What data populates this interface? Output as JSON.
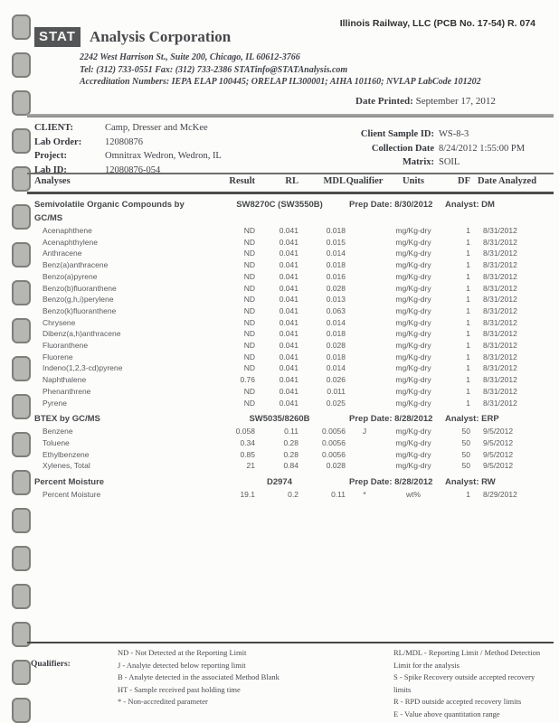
{
  "header": {
    "ref_number": "Illinois Railway, LLC (PCB No. 17-54) R. 074",
    "logo_text": "STAT",
    "company_name": "Analysis Corporation",
    "address_line1": "2242 West Harrison St., Suite 200,  Chicago, IL 60612-3766",
    "address_line2": "Tel: (312) 733-0551  Fax: (312) 733-2386  STATinfo@STATAnalysis.com",
    "address_line3": "Accreditation Numbers: IEPA ELAP 100445; ORELAP IL300001; AIHA 101160; NVLAP LabCode 101202",
    "date_printed_label": "Date Printed:",
    "date_printed_value": "September 17, 2012"
  },
  "client_block": {
    "left": [
      {
        "label": "CLIENT:",
        "value": "Camp, Dresser and McKee"
      },
      {
        "label": "Lab Order:",
        "value": "12080876"
      },
      {
        "label": "Project:",
        "value": "Omnitrax Wedron, Wedron, IL"
      },
      {
        "label": "Lab ID:",
        "value": "12080876-054"
      }
    ],
    "right": [
      {
        "label": "Client Sample ID:",
        "value": "WS-8-3"
      },
      {
        "label": "Collection Date",
        "value": "8/24/2012 1:55:00 PM"
      },
      {
        "label": "Matrix:",
        "value": "SOIL"
      }
    ]
  },
  "table": {
    "columns": [
      "Analyses",
      "Result",
      "RL",
      "MDL",
      "Qualifier",
      "Units",
      "DF",
      "Date Analyzed"
    ],
    "sections": [
      {
        "name": "Semivolatile Organic Compounds by GC/MS",
        "method": "SW8270C  (SW3550B)",
        "prep_date": "Prep Date: 8/30/2012",
        "analyst": "Analyst:  DM",
        "rows": [
          {
            "analyte": "Acenaphthene",
            "result": "ND",
            "rl": "0.041",
            "mdl": "0.018",
            "qual": "",
            "units": "mg/Kg-dry",
            "df": "1",
            "date": "8/31/2012"
          },
          {
            "analyte": "Acenaphthylene",
            "result": "ND",
            "rl": "0.041",
            "mdl": "0.015",
            "qual": "",
            "units": "mg/Kg-dry",
            "df": "1",
            "date": "8/31/2012"
          },
          {
            "analyte": "Anthracene",
            "result": "ND",
            "rl": "0.041",
            "mdl": "0.014",
            "qual": "",
            "units": "mg/Kg-dry",
            "df": "1",
            "date": "8/31/2012"
          },
          {
            "analyte": "Benz(a)anthracene",
            "result": "ND",
            "rl": "0.041",
            "mdl": "0.018",
            "qual": "",
            "units": "mg/Kg-dry",
            "df": "1",
            "date": "8/31/2012"
          },
          {
            "analyte": "Benzo(a)pyrene",
            "result": "ND",
            "rl": "0.041",
            "mdl": "0.016",
            "qual": "",
            "units": "mg/Kg-dry",
            "df": "1",
            "date": "8/31/2012"
          },
          {
            "analyte": "Benzo(b)fluoranthene",
            "result": "ND",
            "rl": "0.041",
            "mdl": "0.028",
            "qual": "",
            "units": "mg/Kg-dry",
            "df": "1",
            "date": "8/31/2012"
          },
          {
            "analyte": "Benzo(g,h,i)perylene",
            "result": "ND",
            "rl": "0.041",
            "mdl": "0.013",
            "qual": "",
            "units": "mg/Kg-dry",
            "df": "1",
            "date": "8/31/2012"
          },
          {
            "analyte": "Benzo(k)fluoranthene",
            "result": "ND",
            "rl": "0.041",
            "mdl": "0.063",
            "qual": "",
            "units": "mg/Kg-dry",
            "df": "1",
            "date": "8/31/2012"
          },
          {
            "analyte": "Chrysene",
            "result": "ND",
            "rl": "0.041",
            "mdl": "0.014",
            "qual": "",
            "units": "mg/Kg-dry",
            "df": "1",
            "date": "8/31/2012"
          },
          {
            "analyte": "Dibenz(a,h)anthracene",
            "result": "ND",
            "rl": "0.041",
            "mdl": "0.018",
            "qual": "",
            "units": "mg/Kg-dry",
            "df": "1",
            "date": "8/31/2012"
          },
          {
            "analyte": "Fluoranthene",
            "result": "ND",
            "rl": "0.041",
            "mdl": "0.028",
            "qual": "",
            "units": "mg/Kg-dry",
            "df": "1",
            "date": "8/31/2012"
          },
          {
            "analyte": "Fluorene",
            "result": "ND",
            "rl": "0.041",
            "mdl": "0.018",
            "qual": "",
            "units": "mg/Kg-dry",
            "df": "1",
            "date": "8/31/2012"
          },
          {
            "analyte": "Indeno(1,2,3-cd)pyrene",
            "result": "ND",
            "rl": "0.041",
            "mdl": "0.014",
            "qual": "",
            "units": "mg/Kg-dry",
            "df": "1",
            "date": "8/31/2012"
          },
          {
            "analyte": "Naphthalene",
            "result": "0.76",
            "rl": "0.041",
            "mdl": "0.026",
            "qual": "",
            "units": "mg/Kg-dry",
            "df": "1",
            "date": "8/31/2012"
          },
          {
            "analyte": "Phenanthrene",
            "result": "ND",
            "rl": "0.041",
            "mdl": "0.011",
            "qual": "",
            "units": "mg/Kg-dry",
            "df": "1",
            "date": "8/31/2012"
          },
          {
            "analyte": "Pyrene",
            "result": "ND",
            "rl": "0.041",
            "mdl": "0.025",
            "qual": "",
            "units": "mg/Kg-dry",
            "df": "1",
            "date": "8/31/2012"
          }
        ]
      },
      {
        "name": "BTEX by GC/MS",
        "method": "SW5035/8260B",
        "prep_date": "Prep Date: 8/28/2012",
        "analyst": "Analyst:  ERP",
        "rows": [
          {
            "analyte": "Benzene",
            "result": "0.058",
            "rl": "0.11",
            "mdl": "0.0056",
            "qual": "J",
            "units": "mg/Kg-dry",
            "df": "50",
            "date": "9/5/2012"
          },
          {
            "analyte": "Toluene",
            "result": "0.34",
            "rl": "0.28",
            "mdl": "0.0056",
            "qual": "",
            "units": "mg/Kg-dry",
            "df": "50",
            "date": "9/5/2012"
          },
          {
            "analyte": "Ethylbenzene",
            "result": "0.85",
            "rl": "0.28",
            "mdl": "0.0056",
            "qual": "",
            "units": "mg/Kg-dry",
            "df": "50",
            "date": "9/5/2012"
          },
          {
            "analyte": "Xylenes, Total",
            "result": "21",
            "rl": "0.84",
            "mdl": "0.028",
            "qual": "",
            "units": "mg/Kg-dry",
            "df": "50",
            "date": "9/5/2012"
          }
        ]
      },
      {
        "name": "Percent Moisture",
        "method": "D2974",
        "prep_date": "Prep Date: 8/28/2012",
        "analyst": "Analyst:  RW",
        "rows": [
          {
            "analyte": "Percent Moisture",
            "result": "19.1",
            "rl": "0.2",
            "mdl": "0.11",
            "qual": "*",
            "units": "wt%",
            "df": "1",
            "date": "8/29/2012"
          }
        ]
      }
    ]
  },
  "footer": {
    "qualifiers_label": "Qualifiers:",
    "left": [
      "ND - Not Detected at the Reporting Limit",
      "J - Analyte detected below reporting limit",
      "B - Analyte detected in the associated Method Blank",
      "HT - Sample received past holding time",
      "* - Non-accredited parameter"
    ],
    "right": [
      "RL/MDL - Reporting Limit / Method Detection Limit for the analysis",
      "S - Spike Recovery outside accepted recovery limits",
      "R - RPD outside accepted recovery limits",
      "E - Value above quantitation range",
      "H - Holding time exceeded"
    ]
  }
}
